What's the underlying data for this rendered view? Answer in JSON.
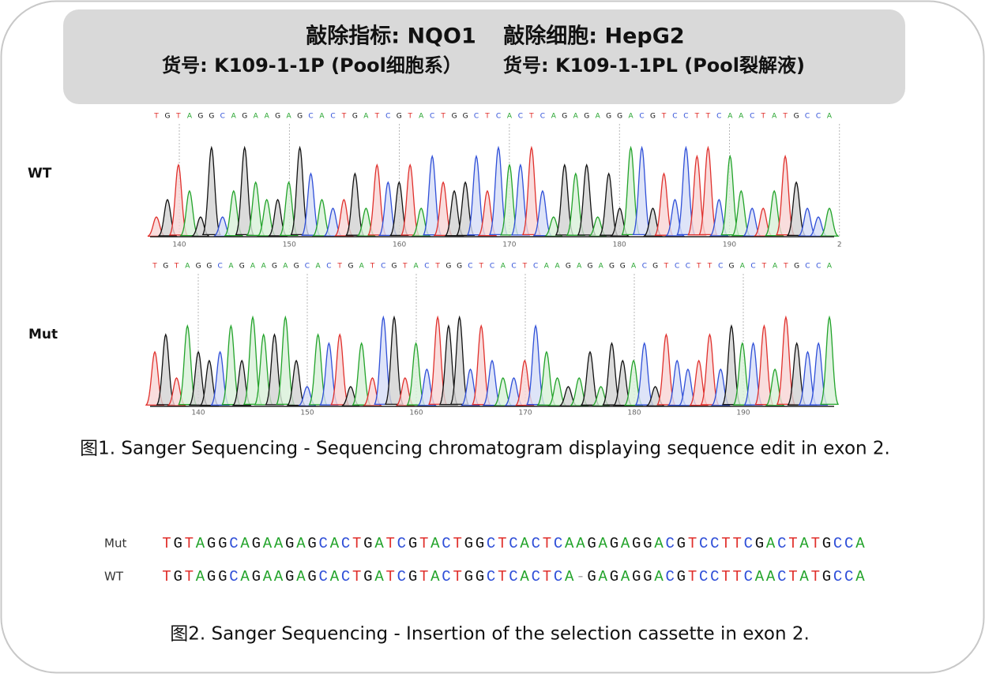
{
  "header": {
    "knockout_target": "敲除指标: NQO1",
    "knockout_cell": "敲除细胞: HepG2",
    "catalog_cells": "货号: K109-1-1P (Pool细胞系）",
    "catalog_lysate": "货号: K109-1-1PL (Pool裂解液)"
  },
  "figure1": {
    "traces": [
      {
        "label": "WT",
        "sequence": "TGTAGGCAGAAGAGCACTGATCGTACTGGCTCACTCAGAGAGGACGTCCTTCAACTATGCCA",
        "positions": [
          140,
          150,
          160,
          170,
          180,
          190,
          2
        ]
      },
      {
        "label": "Mut",
        "sequence": "TGTAGGCAGAAGAGCACTGATCGTACTGGCTCACTCAAGAGAGGACGTCCTTCGACTATGCCA",
        "positions": [
          140,
          150,
          160,
          170,
          180,
          190
        ]
      }
    ],
    "caption": "图1. Sanger Sequencing - Sequencing chromatogram displaying sequence edit in exon 2."
  },
  "figure2": {
    "rows": [
      {
        "label": "Mut",
        "sequence": "TGTAGGCAGAAGAGCACTGATCGTACTGGCTCACTCAAGAGAGGACGTCCTTCGACTATGCCA"
      },
      {
        "label": "WT",
        "sequence": "TGTAGGCAGAAGAGCACTGATCGTACTGGCTCACTCA-GAGAGGACGTCCTTCAACTATGCCA"
      }
    ],
    "caption": "图2. Sanger Sequencing - Insertion of the selection cassette in exon 2."
  }
}
